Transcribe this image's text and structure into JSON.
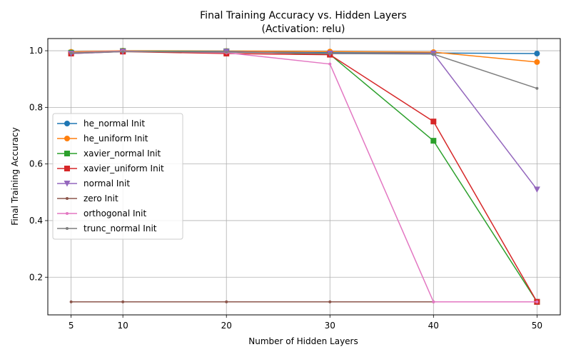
{
  "chart_data": {
    "type": "line",
    "title": "Final Training Accuracy vs. Hidden Layers",
    "subtitle": "(Activation: relu)",
    "xlabel": "Number of Hidden Layers",
    "ylabel": "Final Training Accuracy",
    "x": [
      5,
      10,
      20,
      30,
      40,
      50
    ],
    "xticks": [
      5,
      10,
      20,
      30,
      40,
      50
    ],
    "yticks": [
      0.2,
      0.4,
      0.6,
      0.8,
      1.0
    ],
    "ytick_labels": [
      "0.2",
      "0.4",
      "0.6",
      "0.8",
      "1.0"
    ],
    "xlim": [
      2.75,
      52.25
    ],
    "ylim": [
      0.067,
      1.043
    ],
    "grid": true,
    "legend_position": "center-left",
    "series": [
      {
        "name": "he_normal Init",
        "color": "#1f77b4",
        "marker": "circle",
        "values": [
          0.995,
          0.998,
          0.997,
          0.993,
          0.992,
          0.99
        ]
      },
      {
        "name": "he_uniform Init",
        "color": "#ff7f0e",
        "marker": "circle",
        "values": [
          0.996,
          1.0,
          0.999,
          0.997,
          0.995,
          0.96
        ]
      },
      {
        "name": "xavier_normal Init",
        "color": "#2ca02c",
        "marker": "square",
        "values": [
          0.993,
          0.999,
          0.998,
          0.987,
          0.682,
          0.113
        ]
      },
      {
        "name": "xavier_uniform Init",
        "color": "#d62728",
        "marker": "square",
        "values": [
          0.99,
          0.997,
          0.99,
          0.986,
          0.75,
          0.113
        ]
      },
      {
        "name": "normal Init",
        "color": "#9467bd",
        "marker": "triangle",
        "values": [
          0.99,
          0.997,
          0.997,
          0.99,
          0.99,
          0.51
        ]
      },
      {
        "name": "zero Init",
        "color": "#8c564b",
        "marker": "dot",
        "values": [
          0.113,
          0.113,
          0.113,
          0.113,
          0.113,
          0.113
        ]
      },
      {
        "name": "orthogonal Init",
        "color": "#e377c2",
        "marker": "dot",
        "values": [
          0.993,
          0.999,
          0.993,
          0.953,
          0.113,
          0.113
        ]
      },
      {
        "name": "trunc_normal Init",
        "color": "#7f7f7f",
        "marker": "dot",
        "values": [
          0.992,
          0.997,
          0.995,
          0.99,
          0.988,
          0.867
        ]
      }
    ]
  }
}
